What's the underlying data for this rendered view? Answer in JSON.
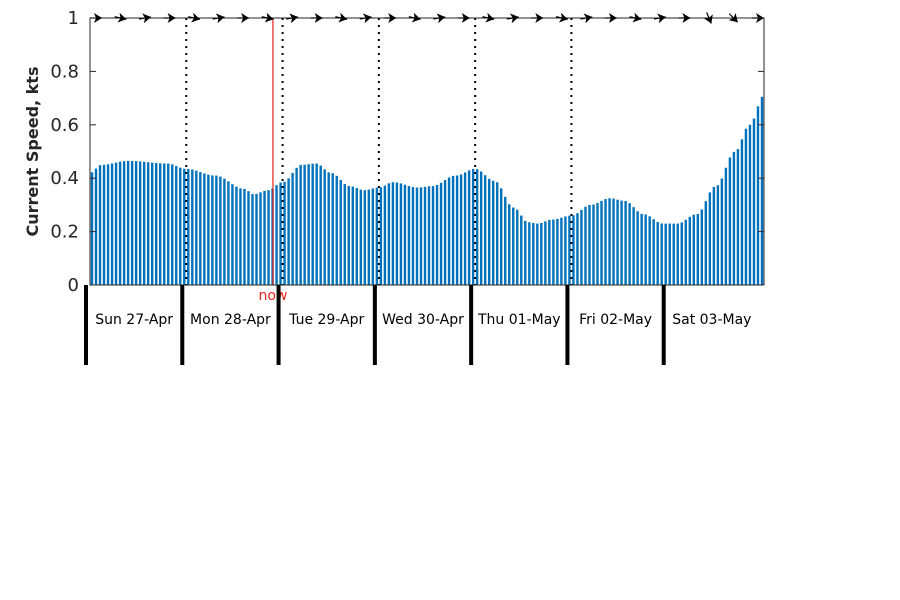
{
  "chart_data": {
    "type": "bar",
    "title": "",
    "xlabel": "",
    "ylabel": "Current Speed, kts",
    "ylim": [
      0,
      1
    ],
    "yticks": [
      0,
      0.2,
      0.4,
      0.6,
      0.8,
      1
    ],
    "ytick_labels": [
      "0",
      "0.2",
      "0.4",
      "0.6",
      "0.8",
      "1"
    ],
    "grid": false,
    "bar_color": "#0072BD",
    "now_color": "#e8221a",
    "now_label": "now",
    "now_time": 1.9,
    "time_unit": "days",
    "xlim": [
      0,
      7
    ],
    "day_separators": [
      1,
      2,
      3,
      4,
      5
    ],
    "days": [
      {
        "label": "Sun 27-Apr",
        "pos": 0
      },
      {
        "label": "Mon 28-Apr",
        "pos": 1
      },
      {
        "label": "Tue 29-Apr",
        "pos": 2
      },
      {
        "label": "Wed 30-Apr",
        "pos": 3
      },
      {
        "label": "Thu 01-May",
        "pos": 4
      },
      {
        "label": "Fri 02-May",
        "pos": 5
      },
      {
        "label": "Sat 03-May",
        "pos": 6
      }
    ],
    "samples_per_day": 24,
    "keypoints": [
      [
        0.0,
        0.42
      ],
      [
        0.12,
        0.45
      ],
      [
        0.4,
        0.465
      ],
      [
        0.8,
        0.455
      ],
      [
        1.0,
        0.435
      ],
      [
        1.3,
        0.41
      ],
      [
        1.6,
        0.36
      ],
      [
        1.7,
        0.34
      ],
      [
        1.85,
        0.355
      ],
      [
        2.0,
        0.385
      ],
      [
        2.2,
        0.45
      ],
      [
        2.35,
        0.455
      ],
      [
        2.5,
        0.42
      ],
      [
        2.7,
        0.37
      ],
      [
        2.85,
        0.355
      ],
      [
        3.0,
        0.365
      ],
      [
        3.15,
        0.385
      ],
      [
        3.4,
        0.365
      ],
      [
        3.55,
        0.37
      ],
      [
        3.8,
        0.41
      ],
      [
        4.0,
        0.435
      ],
      [
        4.2,
        0.39
      ],
      [
        4.4,
        0.29
      ],
      [
        4.55,
        0.235
      ],
      [
        4.65,
        0.23
      ],
      [
        4.8,
        0.245
      ],
      [
        5.0,
        0.26
      ],
      [
        5.2,
        0.3
      ],
      [
        5.4,
        0.325
      ],
      [
        5.55,
        0.315
      ],
      [
        5.75,
        0.265
      ],
      [
        5.95,
        0.23
      ],
      [
        6.1,
        0.23
      ],
      [
        6.3,
        0.265
      ],
      [
        6.5,
        0.37
      ],
      [
        6.7,
        0.5
      ],
      [
        6.85,
        0.6
      ],
      [
        7.0,
        0.71
      ]
    ]
  }
}
